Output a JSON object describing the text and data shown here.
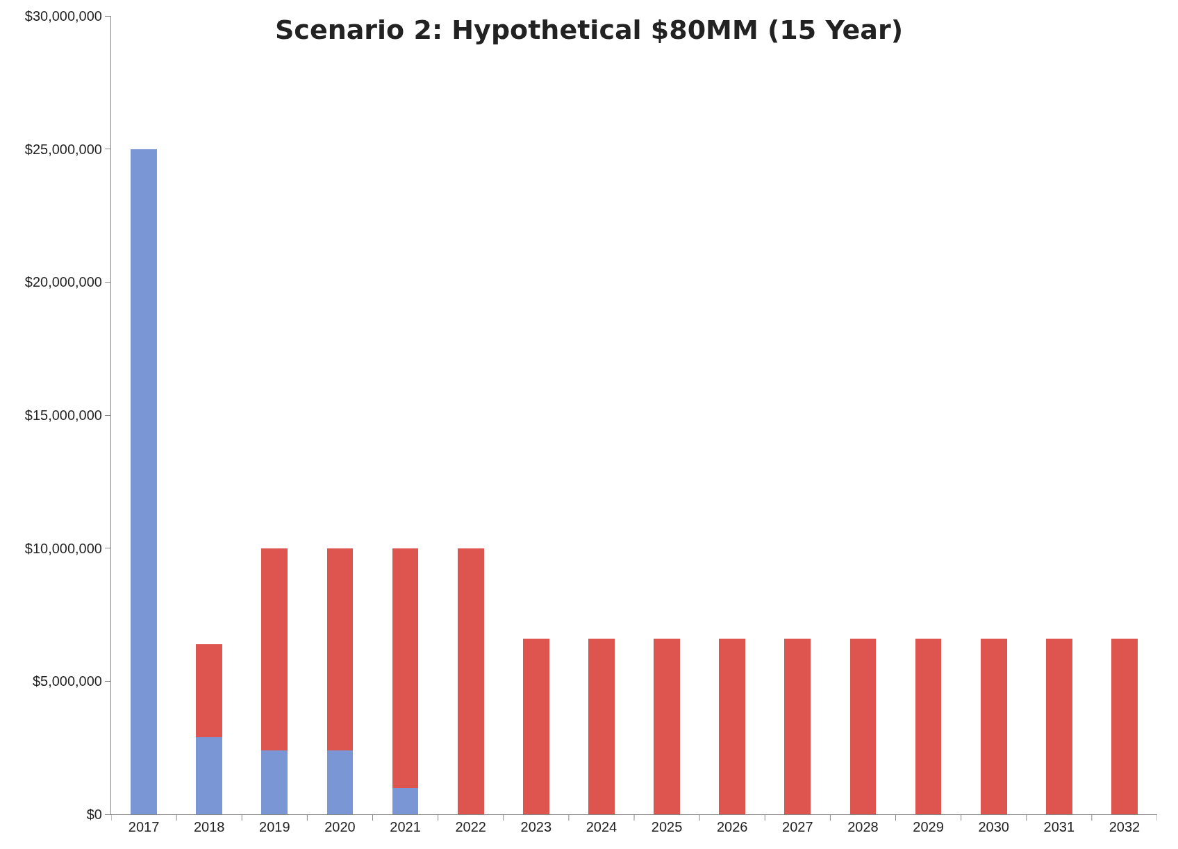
{
  "chart_data": {
    "type": "bar",
    "title": "Scenario 2: Hypothetical $80MM (15 Year)",
    "categories": [
      "2017",
      "2018",
      "2019",
      "2020",
      "2021",
      "2022",
      "2023",
      "2024",
      "2025",
      "2026",
      "2027",
      "2028",
      "2029",
      "2030",
      "2031",
      "2032"
    ],
    "stacked": true,
    "series": [
      {
        "color": "#7b96d4",
        "values": [
          25000000,
          2900000,
          2400000,
          2400000,
          1000000,
          0,
          0,
          0,
          0,
          0,
          0,
          0,
          0,
          0,
          0,
          0
        ]
      },
      {
        "color": "#de5550",
        "values": [
          0,
          3500000,
          7600000,
          7600000,
          9000000,
          10000000,
          6600000,
          6600000,
          6600000,
          6600000,
          6600000,
          6600000,
          6600000,
          6600000,
          6600000,
          6600000
        ]
      }
    ],
    "ylim": [
      0,
      30000000
    ],
    "yticks": [
      {
        "value": 0,
        "label": "$0"
      },
      {
        "value": 5000000,
        "label": "$5,000,000"
      },
      {
        "value": 10000000,
        "label": "$10,000,000"
      },
      {
        "value": 15000000,
        "label": "$15,000,000"
      },
      {
        "value": 20000000,
        "label": "$20,000,000"
      },
      {
        "value": 25000000,
        "label": "$25,000,000"
      },
      {
        "value": 30000000,
        "label": "$30,000,000"
      }
    ]
  }
}
